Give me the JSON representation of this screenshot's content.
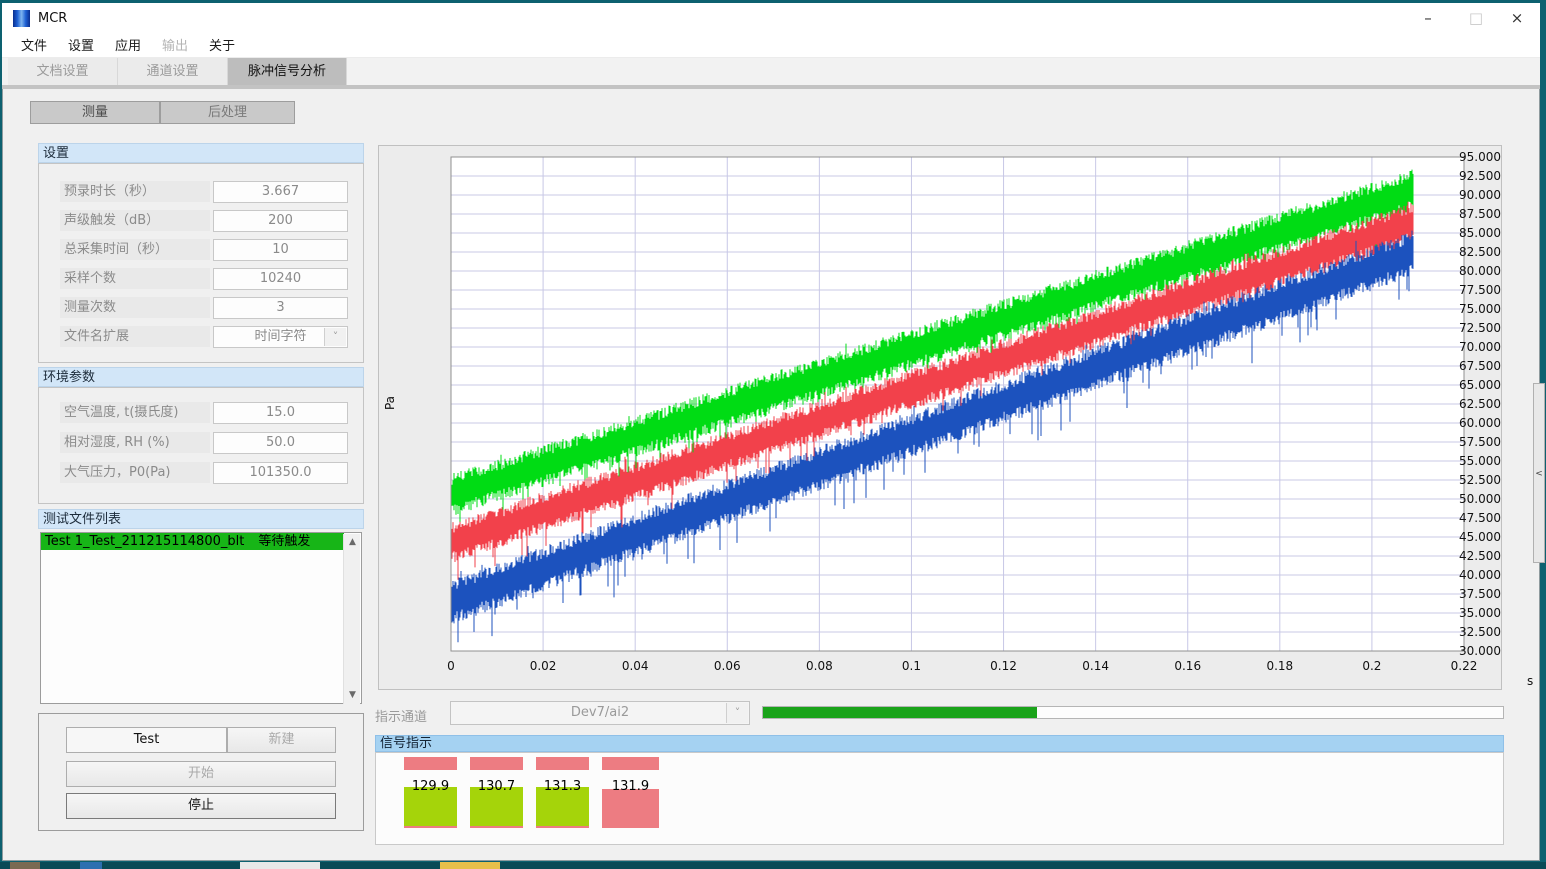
{
  "window": {
    "title": "MCR",
    "controls": {
      "minimize": "–",
      "maximize": "□",
      "close": "×"
    }
  },
  "menu": {
    "items": [
      {
        "label": "文件",
        "enabled": true
      },
      {
        "label": "设置",
        "enabled": true
      },
      {
        "label": "应用",
        "enabled": true
      },
      {
        "label": "输出",
        "enabled": false
      },
      {
        "label": "关于",
        "enabled": true
      }
    ]
  },
  "tabs": [
    {
      "label": "文档设置",
      "active": false
    },
    {
      "label": "通道设置",
      "active": false
    },
    {
      "label": "脉冲信号分析",
      "active": true
    }
  ],
  "subtabs": [
    {
      "label": "测量"
    },
    {
      "label": "后处理"
    }
  ],
  "settings_panel": {
    "header": "设置",
    "fields": [
      {
        "label": "预录时长（秒）",
        "value": "3.667",
        "type": "text"
      },
      {
        "label": "声级触发（dB）",
        "value": "200",
        "type": "text"
      },
      {
        "label": "总采集时间（秒）",
        "value": "10",
        "type": "text"
      },
      {
        "label": "采样个数",
        "value": "10240",
        "type": "text"
      },
      {
        "label": "测量次数",
        "value": "3",
        "type": "text"
      },
      {
        "label": "文件名扩展",
        "value": "时间字符",
        "type": "dropdown"
      }
    ]
  },
  "environment_panel": {
    "header": "环境参数",
    "fields": [
      {
        "label": "空气温度, t(摄氏度)",
        "value": "15.0",
        "type": "text"
      },
      {
        "label": "相对湿度, RH (%)",
        "value": "50.0",
        "type": "text"
      },
      {
        "label": "大气压力，P0(Pa)",
        "value": "101350.0",
        "type": "text"
      }
    ]
  },
  "file_list_panel": {
    "header": "测试文件列表",
    "items": [
      {
        "name": "Test 1_Test_211215114800_blt",
        "status": "等待触发",
        "highlight": "#17b517"
      }
    ]
  },
  "controls_panel": {
    "test_label": "Test",
    "new_label": "新建",
    "start_label": "开始",
    "stop_label": "停止"
  },
  "chart_data": {
    "type": "line",
    "title": "",
    "xlabel": "s",
    "ylabel": "Pa",
    "xlim": [
      0,
      0.22
    ],
    "ylim": [
      30,
      95
    ],
    "grid": true,
    "xticks": [
      "0",
      "0.02",
      "0.04",
      "0.06",
      "0.08",
      "0.1",
      "0.12",
      "0.14",
      "0.16",
      "0.18",
      "0.2",
      "0.22"
    ],
    "yticks": [
      "95.000",
      "92.500",
      "90.000",
      "87.500",
      "85.000",
      "82.500",
      "80.000",
      "77.500",
      "75.000",
      "72.500",
      "70.000",
      "67.500",
      "65.000",
      "62.500",
      "60.000",
      "57.500",
      "55.000",
      "52.500",
      "50.000",
      "47.500",
      "45.000",
      "42.500",
      "40.000",
      "37.500",
      "35.000",
      "32.500",
      "30.000"
    ],
    "gridline_color": "#c8c8e6",
    "series": [
      {
        "name": "channel-green",
        "color": "#00dc14",
        "x_start": 0,
        "x_end": 0.209,
        "y_start": 50.5,
        "y_end": 90.6,
        "band_halfwidth": 2.8,
        "spike_depth": 3.0,
        "description": "noisy rising band, linear trend"
      },
      {
        "name": "channel-red",
        "color": "#f2414b",
        "x_start": 0,
        "x_end": 0.209,
        "y_start": 44.2,
        "y_end": 86.4,
        "band_halfwidth": 2.7,
        "spike_depth": 3.2,
        "description": "noisy rising band, linear trend"
      },
      {
        "name": "channel-blue",
        "color": "#1c52be",
        "x_start": 0,
        "x_end": 0.209,
        "y_start": 36.4,
        "y_end": 82.4,
        "band_halfwidth": 3.0,
        "spike_depth": 3.8,
        "description": "noisy rising band, linear trend"
      }
    ]
  },
  "indicator_row": {
    "label": "指示通道",
    "channel": "Dev7/ai2",
    "progress_percent": 37,
    "progress_color": "#1aa31a"
  },
  "signal_panel": {
    "header": "信号指示",
    "colors": {
      "green": "#a5d40a",
      "red": "#ed7c82"
    },
    "indicators": [
      {
        "value": "129.9",
        "state": "green"
      },
      {
        "value": "130.7",
        "state": "green"
      },
      {
        "value": "131.3",
        "state": "green"
      },
      {
        "value": "131.9",
        "state": "red"
      }
    ]
  },
  "side_handle_glyph": "<",
  "taskbar_icons": [
    {
      "name": "taskbar-icon-1",
      "color": "#7a6a52"
    },
    {
      "name": "taskbar-icon-2",
      "color": "#2d6fb0"
    },
    {
      "name": "taskbar-icon-3",
      "color": "#e8e8e8"
    },
    {
      "name": "taskbar-icon-4",
      "color": "#e8c04a"
    }
  ]
}
